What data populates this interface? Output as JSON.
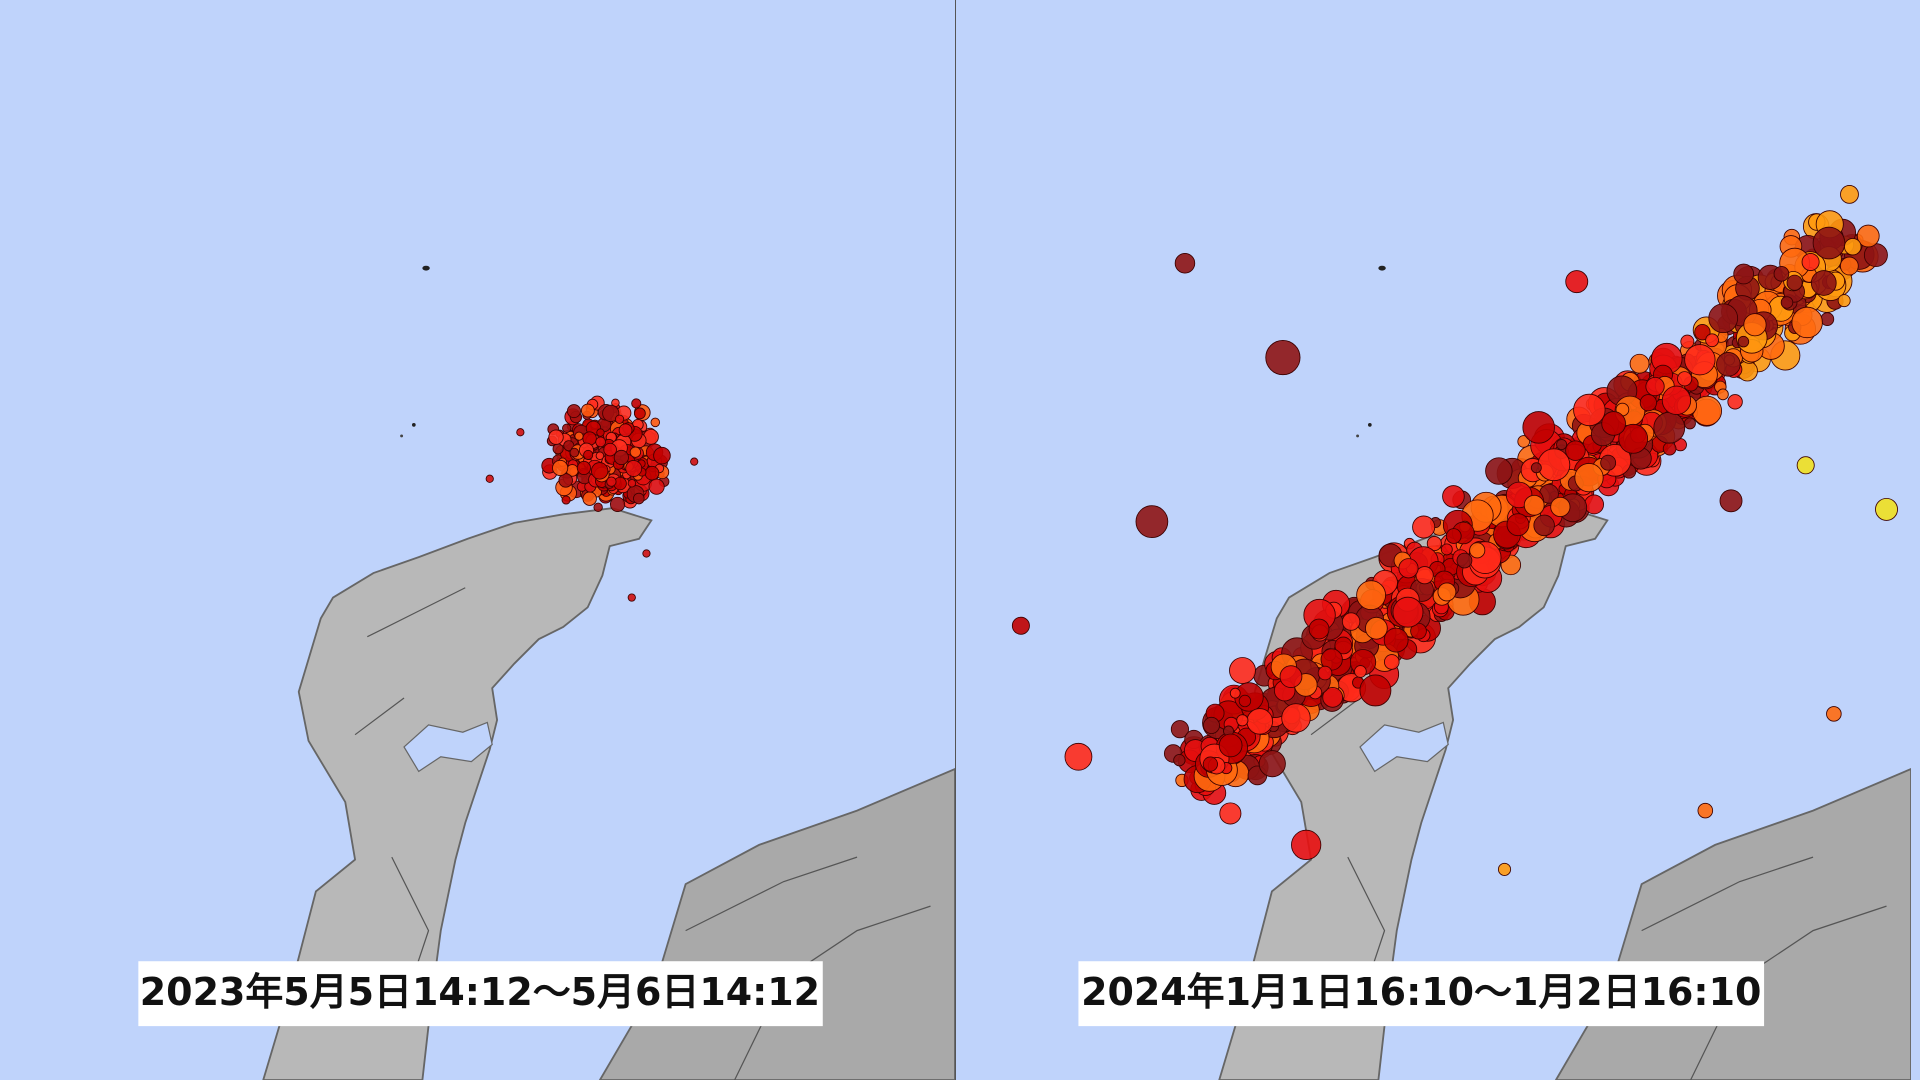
{
  "panels": [
    {
      "caption": "2023年5月5日14:12～5月6日14:12"
    },
    {
      "caption": "2024年1月1日16:10～1月2日16:10"
    }
  ]
}
